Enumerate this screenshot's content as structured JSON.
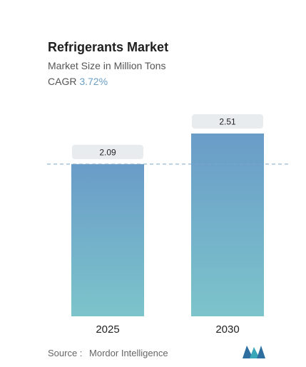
{
  "header": {
    "title": "Refrigerants Market",
    "subtitle": "Market Size in Million Tons",
    "cagr_label": "CAGR",
    "cagr_value": "3.72%"
  },
  "chart_data": {
    "type": "bar",
    "categories": [
      "2025",
      "2030"
    ],
    "values": [
      2.09,
      2.51
    ],
    "data_labels": [
      "2.09",
      "2.51"
    ],
    "title": "Refrigerants Market",
    "subtitle": "Market Size in Million Tons",
    "xlabel": "",
    "ylabel": "",
    "ylim": [
      0,
      2.51
    ],
    "grid": false,
    "reference_line": "dashed line at the 2025 value",
    "colors": {
      "bar_top": "#6a9cc8",
      "bar_bottom": "#7cc4cb",
      "label_box": "#e8ecef",
      "dashed_line": "#7aa6c8"
    }
  },
  "footer": {
    "source_label": "Source :",
    "source_name": "Mordor Intelligence",
    "logo_icon": "mordor-intelligence-logo"
  }
}
